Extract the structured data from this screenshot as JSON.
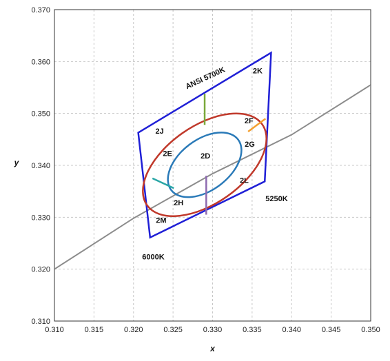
{
  "chart_data": {
    "type": "scatter",
    "title": "",
    "xlabel": "x",
    "ylabel": "y",
    "xlim": [
      0.31,
      0.35
    ],
    "ylim": [
      0.31,
      0.37
    ],
    "grid": true,
    "x_ticks": [
      "0.310",
      "0.315",
      "0.320",
      "0.325",
      "0.330",
      "0.335",
      "0.340",
      "0.345",
      "0.350"
    ],
    "y_ticks": [
      "0.310",
      "0.320",
      "0.330",
      "0.340",
      "0.350",
      "0.360",
      "0.370"
    ],
    "colors": {
      "quad": "#1f1fd6",
      "outer_ellipse": "#c0392b",
      "inner_ellipse": "#2a7ab8",
      "locus": "#8c8c8c",
      "grid": "#c8c8c8",
      "divider_top": "#7aa83a",
      "divider_right": "#f5a030",
      "divider_bottom": "#8e6bb0",
      "divider_left": "#2aa6a6"
    },
    "blackbody_locus": [
      [
        0.31,
        0.32
      ],
      [
        0.32,
        0.3298
      ],
      [
        0.33,
        0.3384
      ],
      [
        0.34,
        0.3459
      ],
      [
        0.35,
        0.3555
      ]
    ],
    "quadrangle": [
      [
        0.3206,
        0.3463
      ],
      [
        0.3374,
        0.3617
      ],
      [
        0.3366,
        0.3369
      ],
      [
        0.3221,
        0.3261
      ]
    ],
    "outer_ellipse": {
      "center": [
        0.329,
        0.3401
      ],
      "axes": [
        0.0089,
        0.0049
      ],
      "angle": 35
    },
    "inner_ellipse": {
      "center": [
        0.329,
        0.3401
      ],
      "axes": [
        0.0053,
        0.0032
      ],
      "angle": 37
    },
    "dividers": [
      {
        "series": "top",
        "points": [
          [
            0.329,
            0.3538
          ],
          [
            0.329,
            0.3478
          ]
        ]
      },
      {
        "series": "right",
        "points": [
          [
            0.3345,
            0.3465
          ],
          [
            0.3367,
            0.349
          ]
        ]
      },
      {
        "series": "bottom",
        "points": [
          [
            0.3292,
            0.338
          ],
          [
            0.3292,
            0.3305
          ]
        ]
      },
      {
        "series": "left",
        "points": [
          [
            0.3224,
            0.3375
          ],
          [
            0.3251,
            0.3356
          ]
        ]
      }
    ],
    "annotations": [
      {
        "text": "ANSI 5700K",
        "x": 0.3292,
        "y": 0.3564,
        "rotate": -25
      },
      {
        "text": "2K",
        "x": 0.3357,
        "y": 0.3577
      },
      {
        "text": "2J",
        "x": 0.3233,
        "y": 0.3461
      },
      {
        "text": "2F",
        "x": 0.3346,
        "y": 0.3481
      },
      {
        "text": "2E",
        "x": 0.3243,
        "y": 0.3418
      },
      {
        "text": "2D",
        "x": 0.3291,
        "y": 0.3413
      },
      {
        "text": "2G",
        "x": 0.3347,
        "y": 0.3436
      },
      {
        "text": "2L",
        "x": 0.334,
        "y": 0.3366
      },
      {
        "text": "2H",
        "x": 0.3257,
        "y": 0.3323
      },
      {
        "text": "5250K",
        "x": 0.3381,
        "y": 0.3331
      },
      {
        "text": "2M",
        "x": 0.3235,
        "y": 0.3289
      },
      {
        "text": "6000K",
        "x": 0.3225,
        "y": 0.3219
      }
    ]
  }
}
